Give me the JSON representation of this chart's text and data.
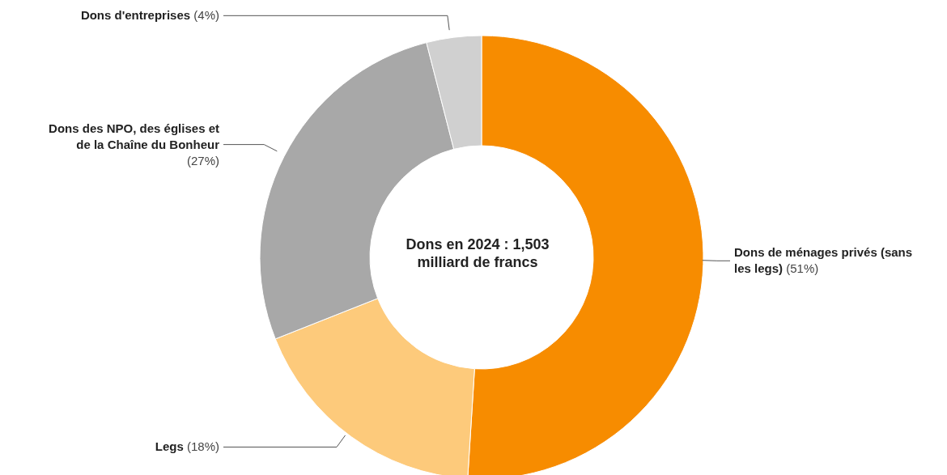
{
  "chart_data": {
    "type": "donut",
    "categories": [
      "Dons de ménages privés (sans les legs)",
      "Legs",
      "Dons des NPO, des églises et de la Chaîne du Bonheur",
      "Dons d'entreprises"
    ],
    "values": [
      51,
      18,
      27,
      4
    ],
    "colors": [
      "#f78c00",
      "#fdca7b",
      "#a8a8a8",
      "#d0d0d0"
    ],
    "value_labels": [
      "(51%)",
      "(18%)",
      "(27%)",
      "(4%)"
    ],
    "annotations": [
      "Dons en 2024 : 1,503 milliard de francs"
    ],
    "legend": false
  }
}
